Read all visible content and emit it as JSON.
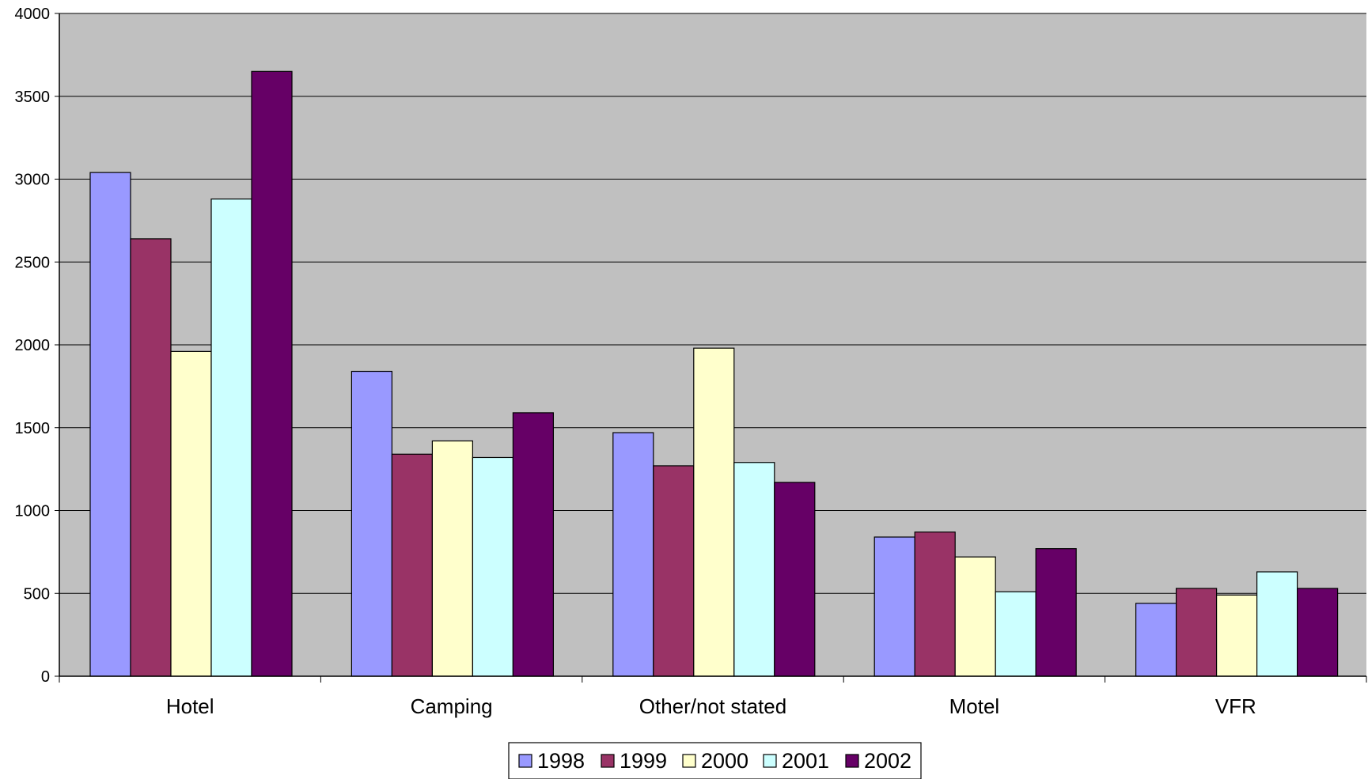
{
  "chart_data": {
    "type": "bar",
    "title": "",
    "xlabel": "",
    "ylabel": "",
    "categories": [
      "Hotel",
      "Camping",
      "Other/not stated",
      "Motel",
      "VFR"
    ],
    "series": [
      {
        "name": "1998",
        "color": "#9999FF",
        "values": [
          3040,
          1840,
          1470,
          840,
          440
        ]
      },
      {
        "name": "1999",
        "color": "#993366",
        "values": [
          2640,
          1340,
          1270,
          870,
          530
        ]
      },
      {
        "name": "2000",
        "color": "#FFFFCC",
        "values": [
          1960,
          1420,
          1980,
          720,
          490
        ]
      },
      {
        "name": "2001",
        "color": "#CCFFFF",
        "values": [
          2880,
          1320,
          1290,
          510,
          630
        ]
      },
      {
        "name": "2002",
        "color": "#660066",
        "values": [
          3650,
          1590,
          1170,
          770,
          530
        ]
      }
    ],
    "ylim": [
      0,
      4000
    ],
    "yticks": [
      "0",
      "500",
      "1000",
      "1500",
      "2000",
      "2500",
      "3000",
      "3500",
      "4000"
    ],
    "grid": true,
    "plot_background": "#C0C0C0",
    "legend_position": "bottom-center"
  }
}
